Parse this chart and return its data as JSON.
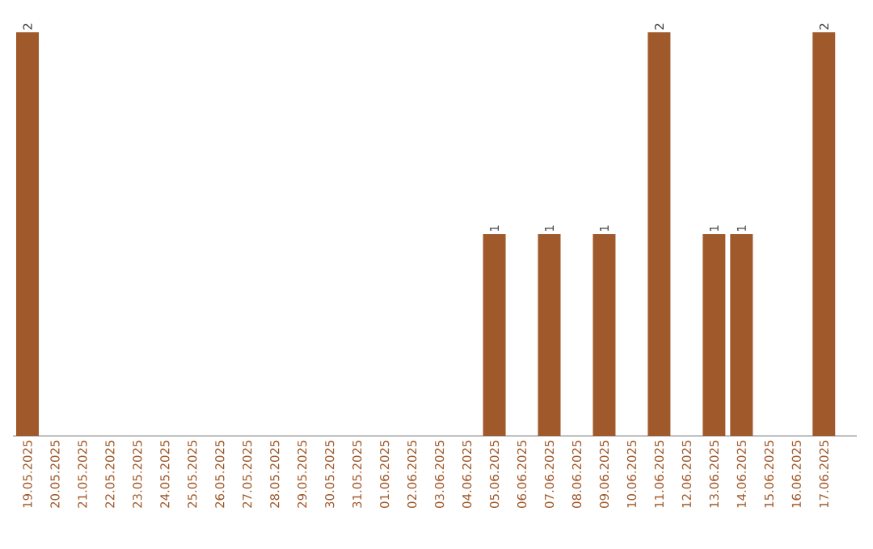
{
  "chart_data": {
    "type": "bar",
    "categories": [
      "19.05.2025",
      "20.05.2025",
      "21.05.2025",
      "22.05.2025",
      "23.05.2025",
      "24.05.2025",
      "25.05.2025",
      "26.05.2025",
      "27.05.2025",
      "28.05.2025",
      "29.05.2025",
      "30.05.2025",
      "31.05.2025",
      "01.06.2025",
      "02.06.2025",
      "03.06.2025",
      "04.06.2025",
      "05.06.2025",
      "06.06.2025",
      "07.06.2025",
      "08.06.2025",
      "09.06.2025",
      "10.06.2025",
      "11.06.2025",
      "12.06.2025",
      "13.06.2025",
      "14.06.2025",
      "15.06.2025",
      "16.06.2025",
      "17.06.2025"
    ],
    "values": [
      2,
      0,
      0,
      0,
      0,
      0,
      0,
      0,
      0,
      0,
      0,
      0,
      0,
      0,
      0,
      0,
      0,
      1,
      0,
      1,
      0,
      1,
      0,
      2,
      0,
      1,
      1,
      0,
      0,
      2
    ],
    "value_labels": [
      "2",
      null,
      null,
      null,
      null,
      null,
      null,
      null,
      null,
      null,
      null,
      null,
      null,
      null,
      null,
      null,
      null,
      "1",
      null,
      "1",
      null,
      "1",
      null,
      "2",
      null,
      "1",
      "1",
      null,
      null,
      "2"
    ],
    "color": "#a0592a"
  }
}
